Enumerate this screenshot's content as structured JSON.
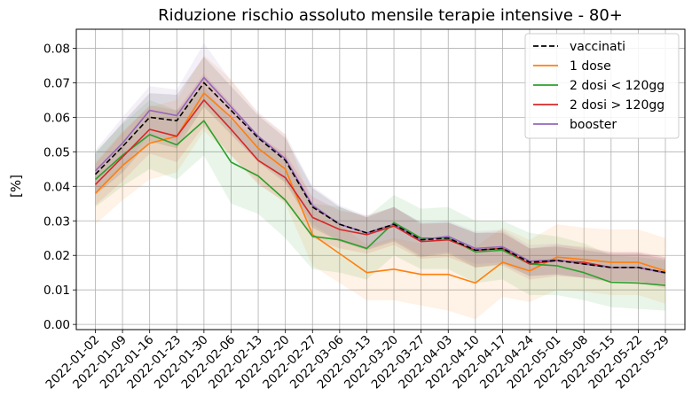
{
  "chart_data": {
    "type": "line",
    "title": "Riduzione rischio assoluto mensile terapie intensive - 80+",
    "xlabel": "",
    "ylabel": "[%]",
    "x": [
      "2022-01-02",
      "2022-01-09",
      "2022-01-16",
      "2022-01-23",
      "2022-01-30",
      "2022-02-06",
      "2022-02-13",
      "2022-02-20",
      "2022-02-27",
      "2022-03-06",
      "2022-03-13",
      "2022-03-20",
      "2022-03-27",
      "2022-04-03",
      "2022-04-10",
      "2022-04-17",
      "2022-04-24",
      "2022-05-01",
      "2022-05-08",
      "2022-05-15",
      "2022-05-22",
      "2022-05-29"
    ],
    "ylim": [
      -0.0015,
      0.0855
    ],
    "yticks": [
      "0.00",
      "0.01",
      "0.02",
      "0.03",
      "0.04",
      "0.05",
      "0.06",
      "0.07",
      "0.08"
    ],
    "grid": true,
    "legend_position": "top-right",
    "series": [
      {
        "name": "vaccinati",
        "color": "#000000",
        "dashed": true,
        "values": [
          0.0435,
          0.0515,
          0.06,
          0.059,
          0.07,
          0.062,
          0.054,
          0.0475,
          0.034,
          0.029,
          0.0265,
          0.029,
          0.0245,
          0.025,
          0.0215,
          0.022,
          0.018,
          0.0185,
          0.0175,
          0.0165,
          0.0165,
          0.015
        ],
        "lower": [
          0.0375,
          0.044,
          0.053,
          0.051,
          0.063,
          0.055,
          0.047,
          0.041,
          0.028,
          0.024,
          0.0215,
          0.024,
          0.0195,
          0.0205,
          0.0165,
          0.0175,
          0.014,
          0.0145,
          0.0135,
          0.0125,
          0.0125,
          0.011
        ],
        "upper": [
          0.0495,
          0.0585,
          0.067,
          0.0665,
          0.0775,
          0.069,
          0.0605,
          0.054,
          0.0395,
          0.034,
          0.031,
          0.034,
          0.0295,
          0.0295,
          0.0265,
          0.0265,
          0.022,
          0.0225,
          0.0215,
          0.0205,
          0.0205,
          0.019
        ]
      },
      {
        "name": "1 dose",
        "color": "#ff7f0e",
        "dashed": false,
        "values": [
          0.038,
          0.046,
          0.0525,
          0.0545,
          0.067,
          0.06,
          0.051,
          0.045,
          0.026,
          0.0205,
          0.015,
          0.016,
          0.0145,
          0.0145,
          0.012,
          0.018,
          0.0155,
          0.0195,
          0.0188,
          0.018,
          0.018,
          0.0155
        ],
        "lower": [
          0.029,
          0.036,
          0.042,
          0.044,
          0.056,
          0.049,
          0.041,
          0.035,
          0.017,
          0.012,
          0.007,
          0.007,
          0.0055,
          0.004,
          0.0015,
          0.008,
          0.0065,
          0.01,
          0.0095,
          0.0085,
          0.0085,
          0.006
        ],
        "upper": [
          0.047,
          0.056,
          0.063,
          0.065,
          0.078,
          0.071,
          0.061,
          0.055,
          0.035,
          0.029,
          0.023,
          0.025,
          0.0235,
          0.025,
          0.0225,
          0.028,
          0.0245,
          0.029,
          0.028,
          0.0275,
          0.0275,
          0.025
        ]
      },
      {
        "name": "2 dosi < 120gg",
        "color": "#2ca02c",
        "dashed": false,
        "values": [
          0.042,
          0.049,
          0.055,
          0.052,
          0.059,
          0.047,
          0.043,
          0.036,
          0.0255,
          0.0245,
          0.022,
          0.0295,
          0.025,
          0.025,
          0.021,
          0.0215,
          0.0175,
          0.017,
          0.015,
          0.0122,
          0.012,
          0.0113
        ],
        "lower": [
          0.034,
          0.04,
          0.045,
          0.042,
          0.049,
          0.035,
          0.032,
          0.025,
          0.016,
          0.015,
          0.013,
          0.02,
          0.016,
          0.016,
          0.012,
          0.013,
          0.0085,
          0.0085,
          0.007,
          0.005,
          0.0045,
          0.004
        ],
        "upper": [
          0.05,
          0.058,
          0.065,
          0.062,
          0.069,
          0.059,
          0.054,
          0.047,
          0.035,
          0.034,
          0.031,
          0.0375,
          0.0335,
          0.034,
          0.03,
          0.03,
          0.0265,
          0.0255,
          0.0235,
          0.02,
          0.0195,
          0.0185
        ]
      },
      {
        "name": "2 dosi > 120gg",
        "color": "#d62728",
        "dashed": false,
        "values": [
          0.0405,
          0.0485,
          0.0565,
          0.0545,
          0.065,
          0.0565,
          0.0475,
          0.0425,
          0.031,
          0.0275,
          0.026,
          0.0285,
          0.024,
          0.0245,
          0.0215,
          0.022,
          0.0175,
          0.0185,
          0.018,
          0.0165,
          0.0165,
          0.015
        ],
        "lower": [
          0.0345,
          0.0415,
          0.0495,
          0.047,
          0.0575,
          0.049,
          0.0405,
          0.0355,
          0.025,
          0.022,
          0.0205,
          0.023,
          0.019,
          0.0195,
          0.0165,
          0.017,
          0.013,
          0.014,
          0.0135,
          0.012,
          0.012,
          0.0105
        ],
        "upper": [
          0.0465,
          0.0555,
          0.0635,
          0.062,
          0.0725,
          0.064,
          0.0545,
          0.0495,
          0.037,
          0.033,
          0.0315,
          0.034,
          0.029,
          0.0295,
          0.0265,
          0.027,
          0.022,
          0.023,
          0.0225,
          0.021,
          0.021,
          0.0195
        ]
      },
      {
        "name": "booster",
        "color": "#9467bd",
        "dashed": false,
        "values": [
          0.0445,
          0.0525,
          0.062,
          0.0605,
          0.0715,
          0.063,
          0.0545,
          0.048,
          0.0345,
          0.029,
          0.0265,
          0.029,
          0.0245,
          0.0255,
          0.022,
          0.0225,
          0.0183,
          0.0187,
          0.0175,
          0.0165,
          0.0165,
          0.0148
        ],
        "lower": [
          0.0385,
          0.0455,
          0.055,
          0.053,
          0.0645,
          0.056,
          0.048,
          0.0415,
          0.029,
          0.024,
          0.022,
          0.0245,
          0.02,
          0.021,
          0.0175,
          0.018,
          0.014,
          0.0145,
          0.0135,
          0.0125,
          0.0125,
          0.011
        ],
        "upper": [
          0.0505,
          0.06,
          0.069,
          0.068,
          0.0815,
          0.0705,
          0.0615,
          0.055,
          0.04,
          0.0345,
          0.0315,
          0.034,
          0.0295,
          0.03,
          0.027,
          0.0275,
          0.023,
          0.0235,
          0.022,
          0.021,
          0.021,
          0.0195
        ]
      }
    ]
  }
}
